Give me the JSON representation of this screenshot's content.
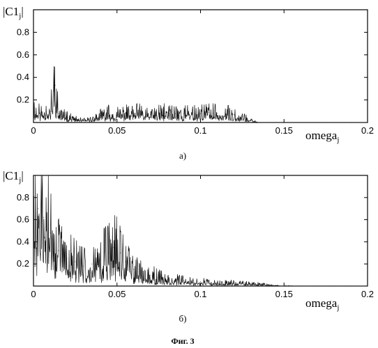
{
  "figure_caption": "Фиг. 3",
  "chart_data": [
    {
      "type": "line",
      "panel_label": "а)",
      "ylabel_main": "|C1",
      "ylabel_sub": "j",
      "ylabel_close": "|",
      "xlabel_main": "omega",
      "xlabel_sub": "j",
      "xlim": [
        0,
        0.2
      ],
      "ylim": [
        0,
        1
      ],
      "grid": false,
      "xticks": [
        0,
        0.05,
        0.1,
        0.15,
        0.2
      ],
      "xtick_labels": [
        "0",
        "0.05",
        "0.1",
        "0.15",
        "0.2"
      ],
      "yticks": [
        0.2,
        0.4,
        0.6,
        0.8
      ],
      "ytick_labels": [
        "0.2",
        "0.4",
        "0.6",
        "0.8"
      ],
      "series": [
        {
          "x": [
            0,
            0.005,
            0.01,
            0.013,
            0.015,
            0.02,
            0.025,
            0.03,
            0.035,
            0.04,
            0.045,
            0.05,
            0.055,
            0.06,
            0.065,
            0.07,
            0.075,
            0.08,
            0.085,
            0.09,
            0.095,
            0.1,
            0.105,
            0.11,
            0.115,
            0.12,
            0.125,
            0.13,
            0.135,
            0.14,
            0.15,
            0.16,
            0.17,
            0.18,
            0.19,
            0.2
          ],
          "y": [
            0.12,
            0.09,
            0.1,
            0.33,
            0.08,
            0.05,
            0.03,
            0.02,
            0.03,
            0.06,
            0.08,
            0.07,
            0.08,
            0.08,
            0.09,
            0.07,
            0.08,
            0.09,
            0.08,
            0.08,
            0.08,
            0.08,
            0.09,
            0.08,
            0.08,
            0.07,
            0.05,
            0.02,
            0.0,
            0.0,
            0.0,
            0.0,
            0.0,
            0.0,
            0.0,
            0.0
          ]
        }
      ]
    },
    {
      "type": "line",
      "panel_label": "б)",
      "ylabel_main": "|C1",
      "ylabel_sub": "j",
      "ylabel_close": "|",
      "xlabel_main": "omega",
      "xlabel_sub": "j",
      "xlim": [
        0,
        0.2
      ],
      "ylim": [
        0,
        1
      ],
      "grid": false,
      "xticks": [
        0,
        0.05,
        0.1,
        0.15,
        0.2
      ],
      "xtick_labels": [
        "0",
        "0.05",
        "0.1",
        "0.15",
        "0.2"
      ],
      "yticks": [
        0.2,
        0.4,
        0.6,
        0.8
      ],
      "ytick_labels": [
        "0.2",
        "0.4",
        "0.6",
        "0.8"
      ],
      "series": [
        {
          "x": [
            0,
            0.003,
            0.006,
            0.01,
            0.015,
            0.02,
            0.025,
            0.03,
            0.035,
            0.04,
            0.045,
            0.048,
            0.052,
            0.055,
            0.06,
            0.065,
            0.07,
            0.075,
            0.08,
            0.09,
            0.1,
            0.11,
            0.12,
            0.13,
            0.135,
            0.14,
            0.145,
            0.15,
            0.16,
            0.17,
            0.18,
            0.19,
            0.2
          ],
          "y": [
            0.55,
            0.7,
            0.62,
            0.48,
            0.32,
            0.25,
            0.22,
            0.18,
            0.2,
            0.24,
            0.3,
            0.35,
            0.3,
            0.22,
            0.15,
            0.12,
            0.1,
            0.08,
            0.06,
            0.05,
            0.04,
            0.03,
            0.03,
            0.02,
            0.02,
            0.01,
            0.005,
            0.0,
            0.0,
            0.0,
            0.0,
            0.0,
            0.0
          ]
        }
      ]
    }
  ]
}
